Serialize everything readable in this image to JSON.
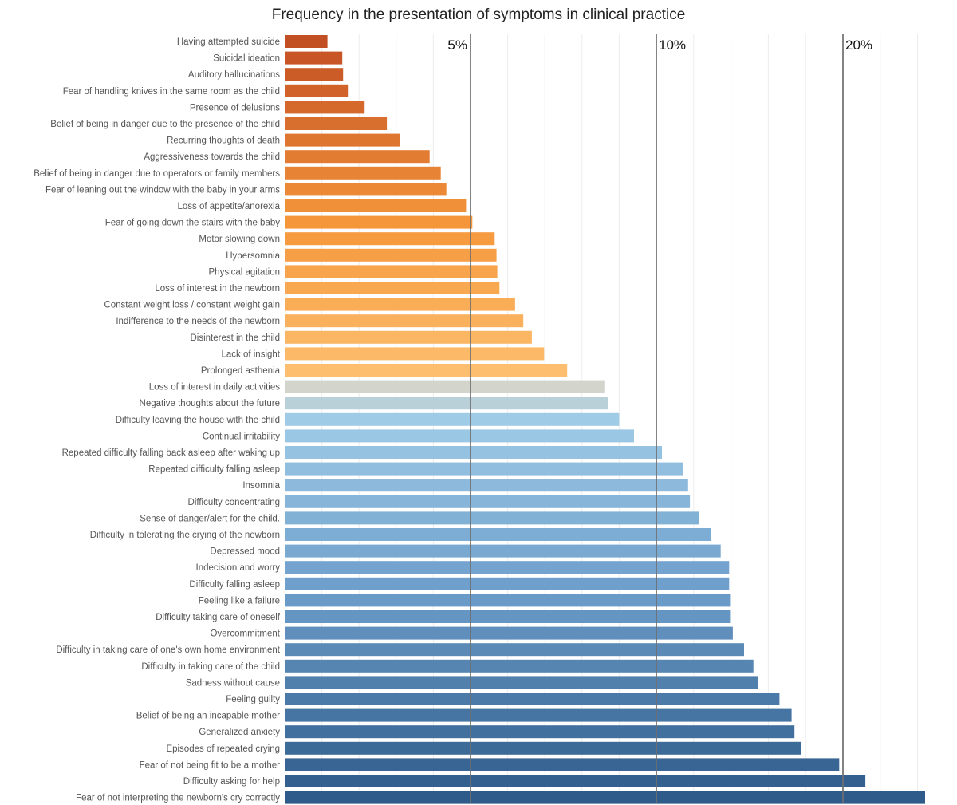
{
  "chart_data": {
    "type": "bar",
    "orientation": "horizontal",
    "title": "Frequency in the presentation of symptoms in clinical practice",
    "xlabel": "",
    "ylabel": "",
    "axis_scale": "segmented",
    "tick_labels": [
      "5%",
      "10%",
      "20%"
    ],
    "grid": true,
    "categories": [
      "Having attempted suicide",
      "Suicidal ideation",
      "Auditory hallucinations",
      "Fear of handling knives in the same room as the child",
      "Presence of delusions",
      "Belief of being in danger due to the presence of the child",
      "Recurring thoughts of death",
      "Aggressiveness towards the child",
      "Belief of being in danger due to operators or family members",
      "Fear of leaning out the window with the baby in your arms",
      "Loss of appetite/anorexia",
      "Fear of going down the stairs with the baby",
      "Motor slowing down",
      "Hypersomnia",
      "Physical agitation",
      "Loss of interest in the newborn",
      "Constant weight loss / constant weight gain",
      "Indifference to the needs of the newborn",
      "Disinterest in the child",
      "Lack of insight",
      "Prolonged asthenia",
      "Loss of interest in daily activities",
      "Negative thoughts about the future",
      "Difficulty leaving the house with the child",
      "Continual irritability",
      "Repeated difficulty falling back asleep after waking up",
      "Repeated difficulty falling asleep",
      "Insomnia",
      "Difficulty concentrating",
      "Sense of danger/alert for the child.",
      "Difficulty in tolerating the crying of the newborn",
      "Depressed mood",
      "Indecision and worry",
      "Difficulty falling asleep",
      "Feeling like a failure",
      "Difficulty taking care of oneself",
      "Overcommitment",
      "Difficulty in taking care of one's own home environment",
      "Difficulty in taking care of the child",
      "Sadness without cause",
      "Feeling guilty",
      "Belief of being an incapable mother",
      "Generalized anxiety",
      "Episodes of repeated crying",
      "Fear of not being fit to be a mother",
      "Difficulty asking for help",
      "Fear of not interpreting the newborn's cry correctly"
    ],
    "values": [
      1.15,
      1.55,
      1.57,
      1.7,
      2.15,
      2.75,
      3.1,
      3.9,
      4.2,
      4.35,
      4.88,
      5.05,
      5.65,
      5.7,
      5.72,
      5.78,
      6.2,
      6.42,
      6.65,
      6.98,
      7.6,
      8.6,
      8.7,
      9.0,
      9.4,
      10.3,
      11.45,
      11.7,
      11.8,
      12.3,
      12.95,
      13.45,
      13.9,
      13.9,
      13.95,
      13.95,
      14.1,
      14.7,
      15.2,
      15.45,
      16.6,
      17.25,
      17.4,
      17.75,
      19.8,
      21.2,
      24.4
    ],
    "colors": {
      "low": "#c24f24",
      "mid_warm": "#f5963a",
      "light_warm": "#fdbf6f",
      "neutral": "#d3d5cc",
      "light_cool": "#9fcbe6",
      "mid_cool": "#6f9fcc",
      "high": "#2e5b89"
    }
  }
}
